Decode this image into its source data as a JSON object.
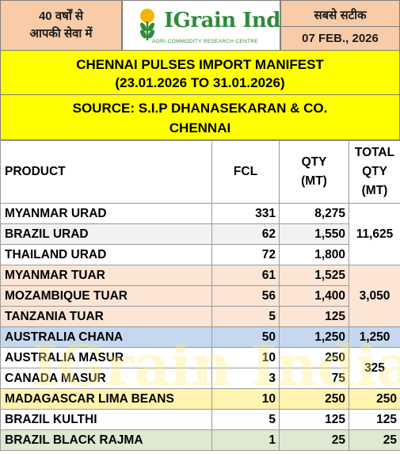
{
  "header": {
    "left_line1": "40 वर्षों से",
    "left_line2": "आपकी सेवा में",
    "logo_text": "IGrain India",
    "logo_tagline": "AGRI-COMMODITY RESEARCH CENTRE",
    "right_line1": "सबसे सटीक",
    "right_date": "07 FEB., 2026"
  },
  "titles": {
    "line1": "CHENNAI PULSES IMPORT MANIFEST",
    "line2": "(23.01.2026 TO 31.01.2026)",
    "line3": "SOURCE: S.I.P DHANASEKARAN & CO.",
    "line4": "CHENNAI"
  },
  "table": {
    "columns": {
      "product": "PRODUCT",
      "fcl": "FCL",
      "qty_line1": "QTY",
      "qty_line2": "(MT)",
      "total_line1": "TOTAL",
      "total_line2": "QTY",
      "total_line3": "(MT)"
    },
    "rows": [
      {
        "product": "MYANMAR URAD",
        "fcl": "331",
        "qty": "8,275"
      },
      {
        "product": "BRAZIL URAD",
        "fcl": "62",
        "qty": "1,550"
      },
      {
        "product": "THAILAND URAD",
        "fcl": "72",
        "qty": "1,800"
      },
      {
        "product": "MYANMAR TUAR",
        "fcl": "61",
        "qty": "1,525"
      },
      {
        "product": "MOZAMBIQUE TUAR",
        "fcl": "56",
        "qty": "1,400"
      },
      {
        "product": "TANZANIA TUAR",
        "fcl": "5",
        "qty": "125"
      },
      {
        "product": "AUSTRALIA CHANA",
        "fcl": "50",
        "qty": "1,250"
      },
      {
        "product": "AUSTRALIA MASUR",
        "fcl": "10",
        "qty": "250"
      },
      {
        "product": "CANADA MASUR",
        "fcl": "3",
        "qty": "75"
      },
      {
        "product": "MADAGASCAR LIMA BEANS",
        "fcl": "10",
        "qty": "250"
      },
      {
        "product": "BRAZIL KULTHI",
        "fcl": "5",
        "qty": "125"
      },
      {
        "product": "BRAZIL BLACK RAJMA",
        "fcl": "1",
        "qty": "25"
      }
    ],
    "totals": {
      "urad": "11,625",
      "tuar": "3,050",
      "chana": "1,250",
      "masur": "325",
      "lima_beans": "250",
      "kulthi": "125",
      "rajma": "25"
    }
  },
  "watermark": "IGrain India",
  "colors": {
    "header_peach": "#f8cba9",
    "title_yellow": "#ffff00",
    "logo_green": "#2e8b3a",
    "row_blue": "#c6d8ef",
    "row_peach": "#fce5d5",
    "row_yellow": "#fff3b0",
    "row_green": "#dbead0"
  }
}
